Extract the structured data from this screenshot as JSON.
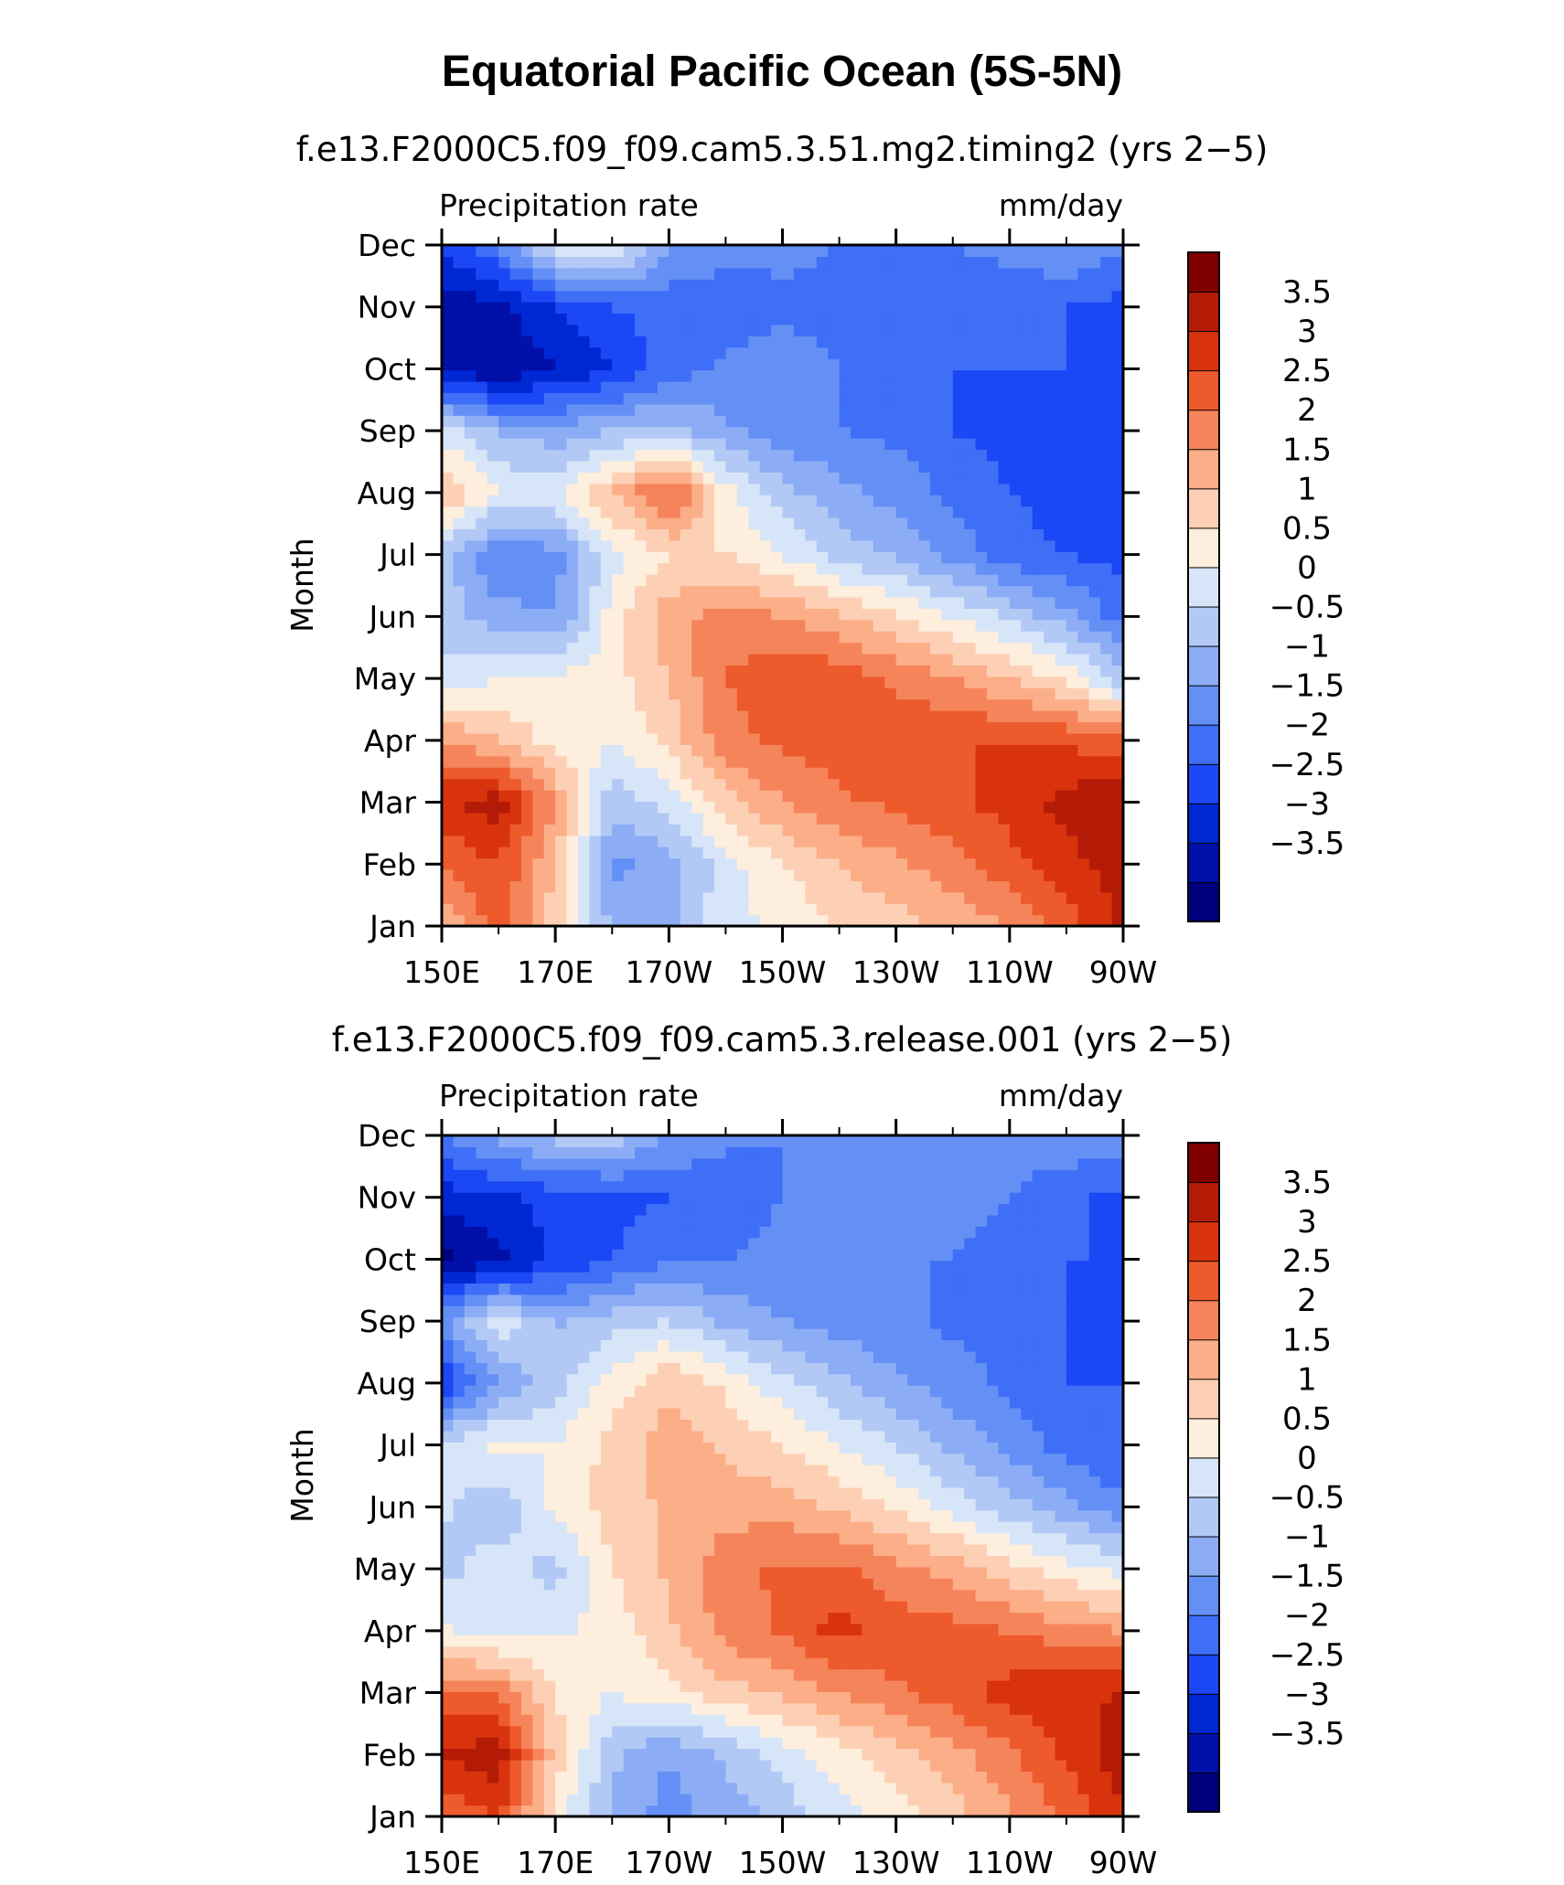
{
  "figure": {
    "title": "Equatorial Pacific Ocean (5S-5N)"
  },
  "colors": [
    "#00007f",
    "#0010a8",
    "#0028d2",
    "#1c47f5",
    "#3f6ff7",
    "#6490f6",
    "#8cadf5",
    "#b2c9f6",
    "#d7e5f8",
    "#fdeedd",
    "#fdd0b5",
    "#fbae87",
    "#f6845a",
    "#ed5a2b",
    "#d9330d",
    "#b31b07",
    "#800000"
  ],
  "chart_data": [
    {
      "type": "heatmap",
      "title": "f.e13.F2000C5.f09_f09.cam5.3.51.mg2.timing2 (yrs 2−5)",
      "left_label": "Precipitation rate",
      "right_label": "mm/day",
      "ylabel": "Month",
      "x_ticks": [
        "150E",
        "170E",
        "170W",
        "150W",
        "130W",
        "110W",
        "90W"
      ],
      "y_ticks": [
        "Jan",
        "Feb",
        "Mar",
        "Apr",
        "May",
        "Jun",
        "Jul",
        "Aug",
        "Sep",
        "Oct",
        "Nov",
        "Dec"
      ],
      "xlim": [
        150,
        270
      ],
      "colorbar": {
        "levels": [
          "3.5",
          "3",
          "2.5",
          "2",
          "1.5",
          "1",
          "0.5",
          "0",
          "−0.5",
          "−1",
          "−1.5",
          "−2",
          "−2.5",
          "−3",
          "−3.5"
        ]
      },
      "x": [
        150,
        160,
        170,
        180,
        190,
        200,
        210,
        220,
        230,
        240,
        250,
        260,
        270
      ],
      "z": [
        [
          1.5,
          2.8,
          1.2,
          -0.6,
          -0.6,
          0.3,
          0.6,
          1.0,
          1.3,
          1.6,
          2.0,
          2.7,
          3.6
        ],
        [
          2.5,
          3.0,
          1.5,
          -1.2,
          -0.8,
          0.3,
          1.0,
          1.5,
          1.9,
          2.3,
          2.8,
          3.3,
          3.8
        ],
        [
          3.4,
          3.8,
          2.0,
          -0.3,
          0.2,
          1.3,
          2.0,
          2.4,
          2.6,
          2.9,
          3.2,
          3.7,
          4.0
        ],
        [
          2.0,
          1.5,
          0.8,
          0.5,
          1.2,
          2.3,
          2.6,
          2.8,
          2.9,
          3.0,
          3.0,
          2.9,
          2.6
        ],
        [
          0.2,
          0.5,
          0.6,
          0.8,
          1.5,
          2.5,
          3.0,
          2.8,
          2.4,
          2.0,
          1.5,
          0.9,
          -0.3
        ],
        [
          -0.2,
          -0.8,
          -1.0,
          0.7,
          1.8,
          2.2,
          2.0,
          1.6,
          1.1,
          0.5,
          -0.1,
          -0.8,
          -1.8
        ],
        [
          -0.3,
          -1.5,
          -1.2,
          0.3,
          1.0,
          1.0,
          0.5,
          -0.2,
          -0.6,
          -1.2,
          -1.8,
          -2.0,
          -2.2
        ],
        [
          1.6,
          0.5,
          0.4,
          1.5,
          2.8,
          0.7,
          -0.3,
          -0.8,
          -1.2,
          -1.6,
          -2.0,
          -2.2,
          -2.3
        ],
        [
          0.3,
          -0.6,
          -0.8,
          -0.5,
          -0.3,
          -0.9,
          -1.3,
          -1.5,
          -1.6,
          -2.0,
          -2.2,
          -2.2,
          -2.3
        ],
        [
          -3.0,
          -3.5,
          -3.0,
          -2.5,
          -1.8,
          -1.4,
          -1.3,
          -1.5,
          -1.5,
          -2.0,
          -2.0,
          -2.0,
          -2.4
        ],
        [
          -3.3,
          -3.2,
          -2.5,
          -2.0,
          -1.8,
          -1.7,
          -1.6,
          -1.6,
          -1.8,
          -2.0,
          -1.9,
          -2.0,
          -2.2
        ],
        [
          -2.5,
          -1.5,
          0.4,
          0.6,
          -1.0,
          -1.4,
          -1.4,
          -1.5,
          -1.6,
          -1.5,
          -1.3,
          -1.0,
          -1.4
        ]
      ]
    },
    {
      "type": "heatmap",
      "title": "f.e13.F2000C5.f09_f09.cam5.3.release.001 (yrs 2−5)",
      "left_label": "Precipitation rate",
      "right_label": "mm/day",
      "ylabel": "Month",
      "x_ticks": [
        "150E",
        "170E",
        "170W",
        "150W",
        "130W",
        "110W",
        "90W"
      ],
      "y_ticks": [
        "Jan",
        "Feb",
        "Mar",
        "Apr",
        "May",
        "Jun",
        "Jul",
        "Aug",
        "Sep",
        "Oct",
        "Nov",
        "Dec"
      ],
      "xlim": [
        150,
        270
      ],
      "colorbar": {
        "levels": [
          "3.5",
          "3",
          "2.5",
          "2",
          "1.5",
          "1",
          "0.5",
          "0",
          "−0.5",
          "−1",
          "−1.5",
          "−2",
          "−2.5",
          "−3",
          "−3.5"
        ]
      },
      "x": [
        150,
        160,
        170,
        180,
        190,
        200,
        210,
        220,
        230,
        240,
        250,
        260,
        270
      ],
      "z": [
        [
          2.5,
          3.0,
          0.8,
          -0.6,
          -1.2,
          -0.8,
          -0.3,
          0.3,
          0.8,
          1.3,
          1.9,
          2.6,
          3.4
        ],
        [
          3.5,
          3.9,
          1.3,
          -0.4,
          -1.0,
          -0.4,
          0.2,
          0.8,
          1.3,
          1.8,
          2.4,
          3.1,
          3.8
        ],
        [
          2.6,
          2.4,
          1.0,
          0.5,
          0.8,
          1.3,
          1.6,
          2.0,
          2.4,
          2.8,
          3.2,
          3.4,
          3.5
        ],
        [
          0.6,
          0.3,
          0.4,
          0.7,
          1.4,
          2.2,
          2.6,
          3.2,
          2.8,
          2.7,
          2.5,
          2.2,
          2.0
        ],
        [
          -0.2,
          0.3,
          -0.2,
          1.0,
          1.6,
          2.3,
          2.6,
          2.6,
          2.2,
          1.8,
          1.2,
          0.7,
          0.3
        ],
        [
          0.1,
          -0.4,
          0.6,
          1.2,
          1.6,
          1.8,
          1.8,
          1.4,
          0.9,
          0.3,
          -0.3,
          -0.8,
          -1.4
        ],
        [
          0.2,
          0.6,
          0.5,
          1.2,
          1.8,
          1.4,
          1.0,
          0.5,
          0.0,
          -0.6,
          -1.2,
          -1.7,
          -2.0
        ],
        [
          -2.5,
          -1.0,
          -0.2,
          0.7,
          1.4,
          0.9,
          0.2,
          -0.4,
          -0.9,
          -1.3,
          -1.6,
          -2.0,
          -2.0
        ],
        [
          -1.2,
          0.4,
          -0.6,
          -0.2,
          0.0,
          -0.6,
          -1.0,
          -1.2,
          -1.4,
          -1.6,
          -1.6,
          -2.0,
          -2.2
        ],
        [
          -3.6,
          -3.2,
          -2.4,
          -2.0,
          -1.6,
          -1.5,
          -1.3,
          -1.4,
          -1.5,
          -1.5,
          -1.6,
          -2.0,
          -2.0
        ],
        [
          -2.8,
          -2.6,
          -2.3,
          -2.2,
          -2.0,
          -1.8,
          -1.5,
          -1.4,
          -1.4,
          -1.4,
          -1.5,
          -1.9,
          -2.2
        ],
        [
          -1.6,
          -0.8,
          -0.3,
          -0.2,
          -1.0,
          -1.4,
          -1.5,
          -1.5,
          -1.5,
          -1.4,
          -1.3,
          -1.1,
          -1.2
        ]
      ]
    }
  ]
}
